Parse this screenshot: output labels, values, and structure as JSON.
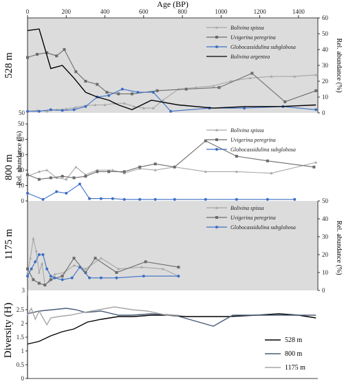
{
  "x_axis": {
    "title": "Age (BP)",
    "ticks": [
      0,
      200,
      400,
      600,
      800,
      1000,
      1200,
      1400
    ]
  },
  "colors": {
    "shade": "#dcdcdc",
    "bolivina_spissa": "#a6a6a6",
    "uvigerina_peregrina": "#6b6b6b",
    "globocassidulina_subglobosa": "#3c6fc4",
    "bolivina_argentea": "#000000",
    "d528": "#000000",
    "d800": "#4a5a78",
    "d1175": "#a6a6a6"
  },
  "chart_data": [
    {
      "type": "line",
      "panel": "528 m",
      "right_ylabel": "Rel. abundance (%)",
      "ylim": [
        0,
        60
      ],
      "yticks": [
        0,
        10,
        20,
        30,
        40,
        50,
        60
      ],
      "left_yticks": [
        50
      ],
      "series": [
        {
          "name": "Bolivina spissa",
          "marker": "tri",
          "color": "#a6a6a6",
          "x": [
            0,
            50,
            100,
            150,
            200,
            250,
            300,
            350,
            400,
            450,
            500,
            550,
            600,
            650,
            700,
            780,
            870,
            960,
            1050,
            1150,
            1260,
            1380,
            1490
          ],
          "y": [
            1,
            1.5,
            1,
            2,
            2.5,
            3.5,
            4.5,
            5,
            5,
            6,
            6,
            4,
            3,
            3,
            8,
            15,
            16,
            17,
            20,
            22,
            23,
            23,
            24
          ]
        },
        {
          "name": "Uvigerina peregrina",
          "marker": "sq",
          "color": "#6b6b6b",
          "x": [
            0,
            50,
            100,
            150,
            190,
            250,
            300,
            360,
            410,
            470,
            540,
            670,
            820,
            990,
            1160,
            1330,
            1490
          ],
          "y": [
            35,
            37,
            38,
            36,
            40,
            26,
            20,
            18,
            13,
            12,
            12,
            14,
            15,
            16,
            25,
            7,
            14
          ]
        },
        {
          "name": "Globocassidulina subglobosa",
          "marker": "dot",
          "color": "#3c6fc4",
          "x": [
            0,
            60,
            120,
            180,
            240,
            300,
            360,
            420,
            490,
            570,
            650,
            740,
            940,
            1120,
            1320,
            1490
          ],
          "y": [
            1,
            1,
            2,
            1.5,
            2,
            4,
            10,
            11,
            15,
            13,
            13,
            1,
            3,
            3,
            4,
            2
          ]
        },
        {
          "name": "Bolivina argentea",
          "marker": "none",
          "color": "#000000",
          "x": [
            0,
            60,
            120,
            180,
            240,
            300,
            360,
            420,
            470,
            540,
            640,
            780,
            960,
            1130,
            1310,
            1490
          ],
          "y": [
            52,
            53,
            28,
            30,
            22,
            13,
            10,
            8,
            5,
            2,
            8,
            5,
            3,
            4,
            4,
            5
          ]
        }
      ]
    },
    {
      "type": "line",
      "panel": "800 m",
      "left_ylabel": "Rel. abundance (%)",
      "ylim": [
        0,
        50
      ],
      "yticks": [
        0,
        10,
        20,
        30,
        40,
        50
      ],
      "series": [
        {
          "name": "Bolivina spissa",
          "marker": "tri",
          "color": "#a6a6a6",
          "x": [
            0,
            60,
            100,
            150,
            200,
            250,
            300,
            360,
            440,
            500,
            580,
            660,
            760,
            920,
            1080,
            1260,
            1490
          ],
          "y": [
            16,
            19,
            20,
            15,
            14,
            22,
            17,
            20,
            20,
            18,
            21,
            20,
            22,
            19,
            19,
            18,
            25
          ]
        },
        {
          "name": "Uvigerina peregrina",
          "marker": "sq",
          "color": "#6b6b6b",
          "x": [
            0,
            60,
            120,
            180,
            240,
            300,
            360,
            420,
            500,
            580,
            660,
            760,
            920,
            1080,
            1240,
            1480
          ],
          "y": [
            17,
            14,
            15,
            16,
            15,
            16,
            19,
            19,
            19,
            22,
            24,
            22,
            39,
            29,
            26,
            22
          ]
        },
        {
          "name": "Globocassidulina subglobosa",
          "marker": "dot",
          "color": "#3c6fc4",
          "x": [
            0,
            80,
            150,
            200,
            270,
            320,
            380,
            440,
            500,
            580,
            660,
            760,
            920,
            1080,
            1240,
            1380
          ],
          "y": [
            5,
            1,
            6,
            5,
            11,
            1.5,
            1.5,
            1.5,
            1,
            1,
            1,
            1,
            1,
            1,
            1,
            1
          ]
        }
      ]
    },
    {
      "type": "line",
      "panel": "1175 m",
      "right_ylabel": "Rel. abundance (%)",
      "ylim": [
        0,
        50
      ],
      "yticks": [
        0,
        10,
        20,
        30,
        40,
        50
      ],
      "left_yticks": [
        3
      ],
      "series": [
        {
          "name": "Bolivina spissa",
          "marker": "tri",
          "color": "#a6a6a6",
          "x": [
            0,
            15,
            30,
            45,
            60,
            75,
            90,
            110,
            140,
            190,
            240,
            300,
            380,
            470,
            590,
            700,
            780
          ],
          "y": [
            10,
            18,
            29,
            22,
            10,
            15,
            3,
            5,
            9,
            10,
            14,
            12,
            18,
            12,
            13,
            12,
            8
          ]
        },
        {
          "name": "Uvigerina peregrina",
          "marker": "sq",
          "color": "#6b6b6b",
          "x": [
            0,
            30,
            60,
            90,
            120,
            180,
            240,
            300,
            350,
            460,
            610,
            780
          ],
          "y": [
            12,
            6,
            4,
            3,
            6,
            8,
            18,
            10,
            18,
            10,
            16,
            13
          ]
        },
        {
          "name": "Globocassidulina subglobosa",
          "marker": "dot",
          "color": "#3c6fc4",
          "x": [
            0,
            20,
            40,
            60,
            80,
            100,
            120,
            140,
            180,
            230,
            270,
            320,
            380,
            460,
            600,
            780
          ],
          "y": [
            8,
            12,
            16,
            20,
            20,
            12,
            8,
            7,
            6,
            7,
            13,
            7,
            7,
            7,
            8,
            8
          ]
        }
      ]
    },
    {
      "type": "line",
      "panel": "Diversity",
      "left_ylabel": "Diversity (H)",
      "ylim": [
        0,
        3
      ],
      "yticks": [
        0,
        0.5,
        1,
        1.5,
        2,
        2.5
      ],
      "series": [
        {
          "name": "528 m",
          "color": "#000000",
          "x": [
            0,
            60,
            120,
            180,
            240,
            310,
            380,
            470,
            550,
            640,
            720,
            820,
            940,
            1040,
            1180,
            1300,
            1400,
            1490
          ],
          "y": [
            1.25,
            1.35,
            1.55,
            1.7,
            1.8,
            2.05,
            2.15,
            2.25,
            2.25,
            2.3,
            2.3,
            2.25,
            2.25,
            2.25,
            2.3,
            2.35,
            2.3,
            2.2
          ]
        },
        {
          "name": "800 m",
          "color": "#4a5a78",
          "x": [
            0,
            60,
            130,
            200,
            250,
            300,
            380,
            470,
            540,
            640,
            760,
            960,
            1060,
            1200,
            1320,
            1490
          ],
          "y": [
            2.35,
            2.45,
            2.5,
            2.55,
            2.5,
            2.4,
            2.45,
            2.3,
            2.3,
            2.35,
            2.3,
            1.9,
            2.3,
            2.3,
            2.3,
            2.3
          ]
        },
        {
          "name": "1175 m",
          "color": "#a6a6a6",
          "x": [
            0,
            20,
            40,
            60,
            80,
            100,
            120,
            160,
            220,
            290,
            370,
            450,
            540,
            620,
            720,
            780
          ],
          "y": [
            2.3,
            2.55,
            2.15,
            2.45,
            2.2,
            1.95,
            2.2,
            2.25,
            2.3,
            2.4,
            2.5,
            2.6,
            2.5,
            2.45,
            2.3,
            2.3
          ]
        }
      ]
    }
  ]
}
